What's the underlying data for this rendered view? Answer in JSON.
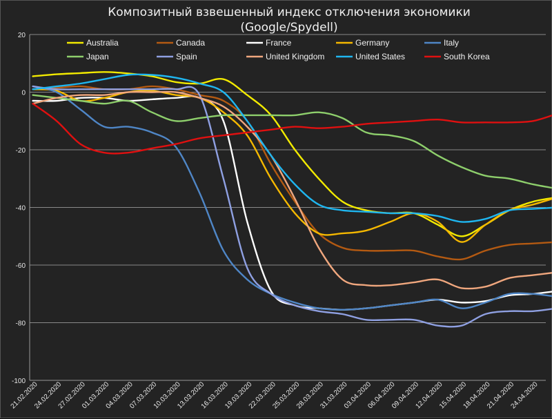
{
  "chart_data": {
    "type": "line",
    "title": "Композитный взвешенный индекс отключения экономики",
    "subtitle": "(Google/Spydell)",
    "xlabel": "",
    "ylabel": "",
    "ylim": [
      -100,
      20
    ],
    "yticks": [
      20,
      0,
      -20,
      -40,
      -60,
      -80,
      -100
    ],
    "x_tick_labels": [
      "21.02.2020",
      "24.02.2020",
      "27.02.2020",
      "01.03.2020",
      "04.03.2020",
      "07.03.2020",
      "10.03.2020",
      "13.03.2020",
      "16.03.2020",
      "19.03.2020",
      "22.03.2020",
      "25.03.2020",
      "28.03.2020",
      "31.03.2020",
      "03.04.2020",
      "06.04.2020",
      "09.04.2020",
      "12.04.2020",
      "15.04.2020",
      "18.04.2020",
      "21.04.2020",
      "24.04.2020"
    ],
    "grid": "horizontal",
    "legend_position": "top",
    "x_start": "2020-02-21",
    "x_step_days": 3,
    "series": [
      {
        "name": "Australia",
        "color": "#f2ea00",
        "values": [
          5.5,
          6.2,
          6.6,
          7,
          6.5,
          5.5,
          3.5,
          3,
          4.5,
          -1,
          -8,
          -20,
          -30,
          -38,
          -41,
          -42,
          -42,
          -46,
          -50,
          -46,
          -41,
          -38,
          -36.5
        ]
      },
      {
        "name": "Canada",
        "color": "#b45a12",
        "values": [
          1,
          1.5,
          2,
          1,
          1,
          2,
          1,
          -1,
          -3,
          -10,
          -25,
          -38,
          -49,
          -54,
          -55,
          -55,
          -55,
          -57,
          -58,
          -55,
          -53,
          -52.5,
          -52
        ]
      },
      {
        "name": "France",
        "color": "#ffffff",
        "values": [
          -3,
          -3,
          -2,
          -2,
          -3,
          -2.5,
          -2,
          -2,
          -10,
          -45,
          -69,
          -74,
          -75,
          -75.5,
          -75,
          -74,
          -73,
          -72,
          -73,
          -72.5,
          -70.5,
          -70,
          -69
        ]
      },
      {
        "name": "Germany",
        "color": "#f5b800",
        "values": [
          1,
          0.5,
          -3,
          -2,
          0,
          0.5,
          -1,
          -2,
          -7,
          -15,
          -30,
          -42,
          -49,
          -49,
          -48,
          -45,
          -42,
          -45,
          -52,
          -46,
          -41,
          -39,
          -36.5
        ]
      },
      {
        "name": "Italy",
        "color": "#4f86c6",
        "values": [
          2,
          0,
          -6,
          -12,
          -12,
          -14,
          -19,
          -35,
          -55,
          -65,
          -70,
          -73,
          -75,
          -75.5,
          -75,
          -74,
          -73,
          -72,
          -75,
          -73,
          -70,
          -70,
          -71
        ]
      },
      {
        "name": "Japan",
        "color": "#8ecf6c",
        "values": [
          -1,
          -2,
          -3,
          -4,
          -3,
          -7,
          -10,
          -9,
          -8,
          -8,
          -8,
          -8,
          -7,
          -9,
          -14,
          -15,
          -17,
          -22,
          -26,
          -29,
          -30,
          -32,
          -33.5
        ]
      },
      {
        "name": "Spain",
        "color": "#8fa0e2",
        "values": [
          2,
          1,
          1,
          1,
          1,
          1,
          1,
          -1,
          -30,
          -61,
          -70,
          -74,
          -76,
          -77,
          -79,
          -79,
          -79,
          -81,
          -81,
          -77,
          -76,
          -76,
          -75
        ]
      },
      {
        "name": "United Kingdom",
        "color": "#f0a77e",
        "values": [
          -4,
          -2,
          -1,
          -1,
          0,
          0,
          0,
          -2,
          -5,
          -12,
          -22,
          -37,
          -54,
          -65,
          -67,
          -67,
          -66,
          -65,
          -68,
          -67.5,
          -64.5,
          -63.5,
          -62.5
        ]
      },
      {
        "name": "United States",
        "color": "#1fb6f0",
        "values": [
          1,
          2,
          3,
          4.5,
          6,
          6,
          5,
          3,
          0,
          -10,
          -22,
          -32,
          -39,
          -41,
          -41.5,
          -42,
          -42,
          -43,
          -45,
          -44,
          -41,
          -40.5,
          -40
        ]
      },
      {
        "name": "South Korea",
        "color": "#e01010",
        "values": [
          -4,
          -10,
          -18,
          -21,
          -21,
          -19.5,
          -18,
          -16,
          -15,
          -14,
          -13,
          -12,
          -12.5,
          -12,
          -11,
          -10.5,
          -10,
          -9.5,
          -10.5,
          -10.5,
          -10.5,
          -10,
          -7.5
        ]
      }
    ]
  }
}
